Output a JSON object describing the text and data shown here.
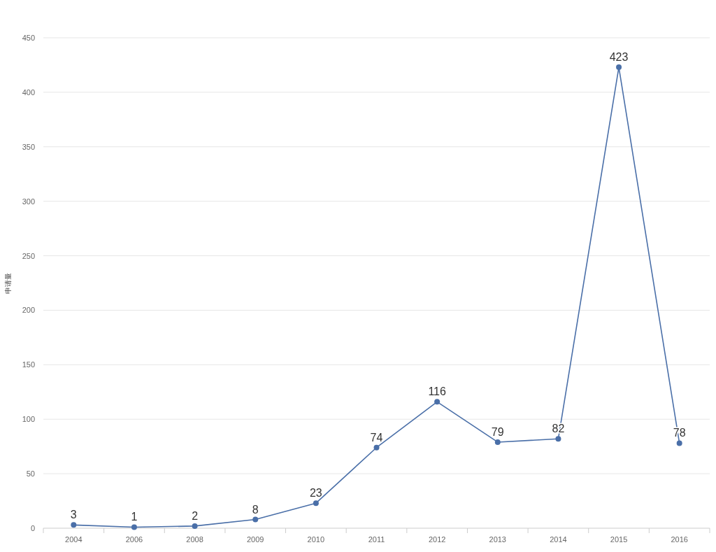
{
  "chart_data": {
    "type": "line",
    "ylabel": "申请量",
    "categories": [
      "2004",
      "2006",
      "2008",
      "2009",
      "2010",
      "2011",
      "2012",
      "2013",
      "2014",
      "2015",
      "2016"
    ],
    "values": [
      3,
      1,
      2,
      8,
      23,
      74,
      116,
      79,
      82,
      423,
      78
    ],
    "color": "#4a6fa8",
    "ylim": [
      0,
      450
    ],
    "yticks": [
      0,
      50,
      100,
      150,
      200,
      250,
      300,
      350,
      400,
      450
    ],
    "grid": "y",
    "marker": "circle",
    "data_labels": true
  }
}
